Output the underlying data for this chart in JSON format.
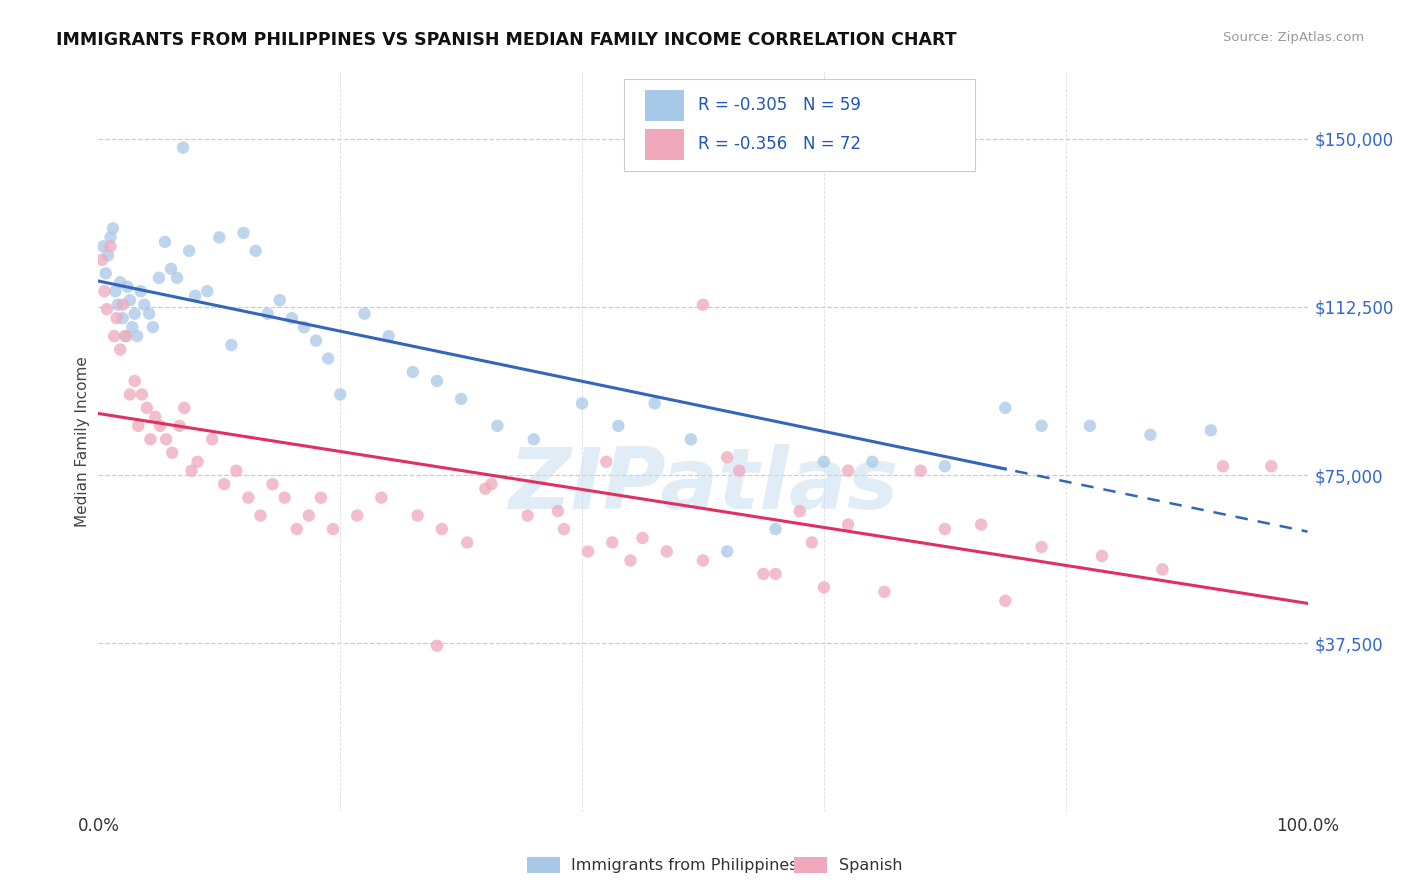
{
  "title": "IMMIGRANTS FROM PHILIPPINES VS SPANISH MEDIAN FAMILY INCOME CORRELATION CHART",
  "source": "Source: ZipAtlas.com",
  "ylabel": "Median Family Income",
  "yticks": [
    37500,
    75000,
    112500,
    150000
  ],
  "ytick_labels": [
    "$37,500",
    "$75,000",
    "$112,500",
    "$150,000"
  ],
  "xmin": 0.0,
  "xmax": 100.0,
  "ymin": 0,
  "ymax": 165000,
  "legend_blue_label": "Immigrants from Philippines",
  "legend_pink_label": "Spanish",
  "legend_r_blue": "R = -0.305",
  "legend_n_blue": "N = 59",
  "legend_r_pink": "R = -0.356",
  "legend_n_pink": "N = 72",
  "blue_color": "#a8c8e8",
  "pink_color": "#f0a8bc",
  "blue_line_color": "#3366bb",
  "pink_line_color": "#e03060",
  "watermark": "ZIPatlas",
  "philippines_x": [
    0.4,
    0.6,
    0.8,
    1.0,
    1.2,
    1.4,
    1.6,
    1.8,
    2.0,
    2.2,
    2.4,
    2.6,
    2.8,
    3.0,
    3.2,
    3.5,
    3.8,
    4.2,
    4.5,
    5.0,
    5.5,
    6.0,
    6.5,
    7.0,
    7.5,
    8.0,
    9.0,
    10.0,
    11.0,
    12.0,
    13.0,
    14.0,
    15.0,
    16.0,
    17.0,
    18.0,
    19.0,
    20.0,
    22.0,
    24.0,
    26.0,
    28.0,
    30.0,
    33.0,
    36.0,
    40.0,
    43.0,
    46.0,
    49.0,
    52.0,
    56.0,
    60.0,
    64.0,
    70.0,
    75.0,
    78.0,
    82.0,
    87.0,
    92.0
  ],
  "philippines_y": [
    126000,
    120000,
    124000,
    128000,
    130000,
    116000,
    113000,
    118000,
    110000,
    106000,
    117000,
    114000,
    108000,
    111000,
    106000,
    116000,
    113000,
    111000,
    108000,
    119000,
    127000,
    121000,
    119000,
    148000,
    125000,
    115000,
    116000,
    128000,
    104000,
    129000,
    125000,
    111000,
    114000,
    110000,
    108000,
    105000,
    101000,
    93000,
    111000,
    106000,
    98000,
    96000,
    92000,
    86000,
    83000,
    91000,
    86000,
    91000,
    83000,
    58000,
    63000,
    78000,
    78000,
    77000,
    90000,
    86000,
    86000,
    84000,
    85000
  ],
  "spanish_x": [
    0.3,
    0.5,
    0.7,
    1.0,
    1.3,
    1.5,
    1.8,
    2.0,
    2.3,
    2.6,
    3.0,
    3.3,
    3.6,
    4.0,
    4.3,
    4.7,
    5.1,
    5.6,
    6.1,
    6.7,
    7.1,
    7.7,
    8.2,
    9.4,
    10.4,
    11.4,
    12.4,
    13.4,
    14.4,
    15.4,
    16.4,
    17.4,
    18.4,
    19.4,
    21.4,
    23.4,
    26.4,
    28.4,
    30.5,
    32.5,
    35.5,
    38.5,
    40.5,
    42.5,
    44.0,
    47.0,
    50.0,
    53.0,
    56.0,
    59.0,
    62.0,
    42.0,
    50.0,
    55.0,
    60.0,
    65.0,
    70.0,
    75.0,
    62.0,
    68.0,
    73.0,
    78.0,
    83.0,
    88.0,
    93.0,
    97.0,
    28.0,
    32.0,
    38.0,
    45.0,
    52.0,
    58.0
  ],
  "spanish_y": [
    123000,
    116000,
    112000,
    126000,
    106000,
    110000,
    103000,
    113000,
    106000,
    93000,
    96000,
    86000,
    93000,
    90000,
    83000,
    88000,
    86000,
    83000,
    80000,
    86000,
    90000,
    76000,
    78000,
    83000,
    73000,
    76000,
    70000,
    66000,
    73000,
    70000,
    63000,
    66000,
    70000,
    63000,
    66000,
    70000,
    66000,
    63000,
    60000,
    73000,
    66000,
    63000,
    58000,
    60000,
    56000,
    58000,
    113000,
    76000,
    53000,
    60000,
    64000,
    78000,
    56000,
    53000,
    50000,
    49000,
    63000,
    47000,
    76000,
    76000,
    64000,
    59000,
    57000,
    54000,
    77000,
    77000,
    37000,
    72000,
    67000,
    61000,
    79000,
    67000
  ]
}
